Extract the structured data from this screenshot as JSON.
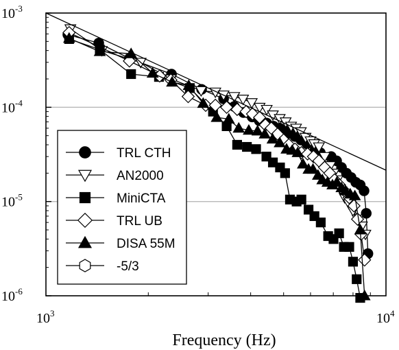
{
  "chart_data": {
    "type": "line",
    "xscale": "log",
    "yscale": "log",
    "xlim": [
      1000,
      10000
    ],
    "ylim": [
      1e-06,
      0.001
    ],
    "xlabel": "Frequency (Hz)",
    "ylabel": "",
    "grid": "horizontal",
    "legend_position": "bottom-left",
    "x_ticks": [
      {
        "base": "10",
        "exp": "3"
      },
      {
        "base": "10",
        "exp": "4"
      }
    ],
    "y_ticks": [
      {
        "base": "10",
        "exp": "-3"
      },
      {
        "base": "10",
        "exp": "-4"
      },
      {
        "base": "10",
        "exp": "-5"
      },
      {
        "base": "10",
        "exp": "-6"
      }
    ],
    "series": [
      {
        "name": "TRL CTH",
        "marker": "circle-filled",
        "x": [
          1160,
          1430,
          1760,
          2340,
          2870,
          3330,
          3580,
          3810,
          4040,
          4240,
          4460,
          4670,
          4870,
          5060,
          5230,
          5400,
          5620,
          5850,
          6180,
          6410,
          6900,
          7160,
          7400,
          7650,
          7900,
          8150,
          8400,
          8620,
          8750,
          8850
        ],
        "y": [
          0.00059,
          0.00048,
          0.00033,
          0.000225,
          0.000155,
          0.000123,
          0.000102,
          8.8e-05,
          7.9e-05,
          7.2e-05,
          6.8e-05,
          6.3e-05,
          6e-05,
          5.6e-05,
          5.3e-05,
          4.9e-05,
          4.5e-05,
          4.1e-05,
          3.5e-05,
          3.3e-05,
          3e-05,
          2.7e-05,
          2.3e-05,
          2e-05,
          1.8e-05,
          1.6e-05,
          1.5e-05,
          1.3e-05,
          7.5e-06,
          2.8e-06
        ]
      },
      {
        "name": "AN2000",
        "marker": "triangle-down-open",
        "x": [
          1180,
          1460,
          1900,
          2330,
          2860,
          3150,
          3330,
          3580,
          3800,
          4030,
          4250,
          4460,
          4650,
          4870,
          5070,
          5260,
          5440,
          5620,
          5800,
          6000,
          6150,
          6350,
          6600,
          6860,
          7020,
          7200,
          7390,
          7560,
          7780,
          8000,
          8250,
          8500,
          8700
        ],
        "y": [
          0.00068,
          0.0004,
          0.0003,
          0.0002,
          0.00015,
          0.000145,
          0.000135,
          0.00013,
          0.000122,
          0.000112,
          0.0001,
          9.5e-05,
          8.3e-05,
          7.6e-05,
          7e-05,
          6.3e-05,
          6e-05,
          5.5e-05,
          4.8e-05,
          4.4e-05,
          4.1e-05,
          3.8e-05,
          3e-05,
          2.4e-05,
          2e-05,
          1.7e-05,
          1.3e-05,
          1.1e-05,
          9.5e-06,
          8e-06,
          6.5e-06,
          5.5e-06,
          4.5e-06
        ]
      },
      {
        "name": "MiniCTA",
        "marker": "square-filled",
        "x": [
          1170,
          1440,
          1780,
          2150,
          2650,
          3100,
          3400,
          3650,
          3900,
          4150,
          4450,
          4650,
          4880,
          5050,
          5220,
          5460,
          5640,
          5920,
          6160,
          6430,
          6760,
          7010,
          7280,
          7520,
          7800,
          8000,
          8200,
          8400
        ],
        "y": [
          0.00053,
          0.00041,
          0.000225,
          0.00021,
          0.00016,
          9e-05,
          6.3e-05,
          4e-05,
          3.8e-05,
          3.6e-05,
          3e-05,
          2.6e-05,
          2.3e-05,
          2e-05,
          1.05e-05,
          1e-05,
          1.05e-05,
          8.2e-06,
          7e-06,
          6e-06,
          4.3e-06,
          4e-06,
          4.6e-06,
          3.3e-06,
          3.3e-06,
          2.3e-06,
          1.5e-06,
          9.5e-07
        ]
      },
      {
        "name": "TRL UB",
        "marker": "diamond-open",
        "x": [
          1170,
          1760,
          2160,
          2330,
          2620,
          2950,
          3150,
          3400,
          3650,
          3880,
          4050,
          4250,
          4420,
          4600,
          4800,
          5000,
          5180,
          5400,
          5640,
          5880,
          6120,
          6350,
          6600,
          6840,
          7060,
          7300,
          7540,
          7800,
          8050,
          8250,
          8450,
          8650
        ],
        "y": [
          0.00062,
          0.00031,
          0.000215,
          0.000195,
          0.00013,
          0.000105,
          0.000105,
          0.0001,
          9.5e-05,
          9e-05,
          8.5e-05,
          7.8e-05,
          6.5e-05,
          6e-05,
          5.2e-05,
          4.5e-05,
          4e-05,
          3.6e-05,
          3.3e-05,
          3.2e-05,
          3e-05,
          2.7e-05,
          2.3e-05,
          2e-05,
          1.7e-05,
          1.5e-05,
          1.3e-05,
          1.1e-05,
          9e-06,
          6.5e-06,
          4.5e-06,
          2.4e-06
        ]
      },
      {
        "name": "DISA 55M",
        "marker": "triangle-up-filled",
        "x": [
          1170,
          1440,
          1780,
          2060,
          2350,
          2630,
          2900,
          3180,
          3450,
          3690,
          3950,
          4190,
          4400,
          4640,
          4870,
          5100,
          5300,
          5500,
          5700,
          5920,
          6100,
          6310,
          6500,
          6730,
          6960,
          7170,
          7400,
          7600,
          7850,
          8100,
          8400,
          8650
        ],
        "y": [
          0.00054,
          0.00039,
          0.00037,
          0.00023,
          0.000185,
          0.00017,
          0.00011,
          7.8e-05,
          7.5e-05,
          6e-05,
          5.7e-05,
          5.6e-05,
          5.2e-05,
          4.6e-05,
          4.2e-05,
          3.6e-05,
          3.5e-05,
          3.3e-05,
          2.5e-05,
          2.2e-05,
          2.2e-05,
          1.9e-05,
          1.7e-05,
          1.6e-05,
          1.5e-05,
          1.6e-05,
          1.4e-05,
          1.3e-05,
          1.2e-05,
          1.15e-05,
          5e-06,
          1e-06
        ]
      },
      {
        "name": "-5/3",
        "marker": "hexagon-open",
        "x": [
          1000,
          10000
        ],
        "y": [
          0.001,
          2.15e-05
        ]
      }
    ]
  }
}
